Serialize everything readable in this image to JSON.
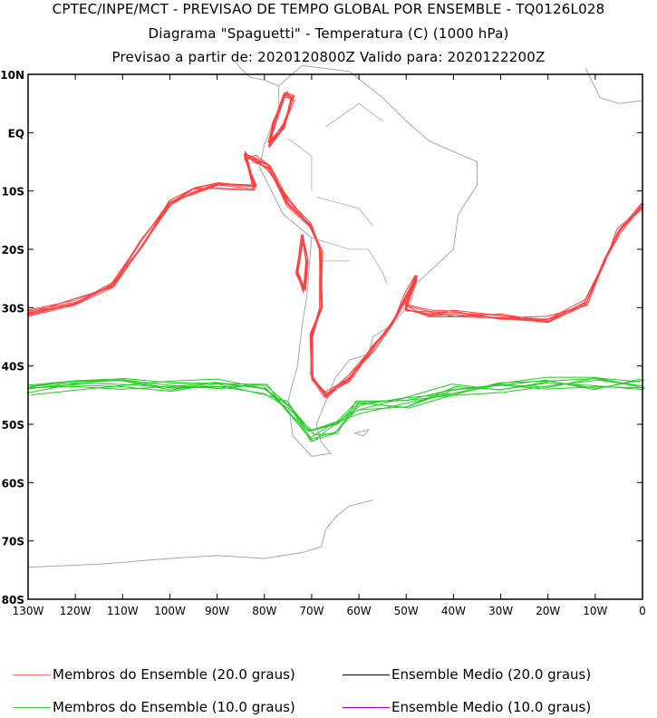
{
  "header": {
    "line1": "CPTEC/INPE/MCT - PREVISAO DE TEMPO GLOBAL POR ENSEMBLE - TQ0126L028",
    "line2": "Diagrama \"Spaguetti\" - Temperatura (C) (1000 hPa)",
    "line3": "Previsao a partir de: 2020120800Z  Valido para: 2020122200Z"
  },
  "chart_data": {
    "type": "map-contour",
    "lon_range": [
      -130,
      0
    ],
    "lat_range": [
      -80,
      10
    ],
    "lat_ticks": [
      {
        "v": 10,
        "label": "10N"
      },
      {
        "v": 0,
        "label": "EQ"
      },
      {
        "v": -10,
        "label": "10S"
      },
      {
        "v": -20,
        "label": "20S"
      },
      {
        "v": -30,
        "label": "30S"
      },
      {
        "v": -40,
        "label": "40S"
      },
      {
        "v": -50,
        "label": "50S"
      },
      {
        "v": -60,
        "label": "60S"
      },
      {
        "v": -70,
        "label": "70S"
      },
      {
        "v": -80,
        "label": "80S"
      }
    ],
    "lon_ticks": [
      {
        "v": -130,
        "label": "130W"
      },
      {
        "v": -120,
        "label": "120W"
      },
      {
        "v": -110,
        "label": "110W"
      },
      {
        "v": -100,
        "label": "100W"
      },
      {
        "v": -90,
        "label": "90W"
      },
      {
        "v": -80,
        "label": "80W"
      },
      {
        "v": -70,
        "label": "70W"
      },
      {
        "v": -60,
        "label": "60W"
      },
      {
        "v": -50,
        "label": "50W"
      },
      {
        "v": -40,
        "label": "40W"
      },
      {
        "v": -30,
        "label": "30W"
      },
      {
        "v": -20,
        "label": "20W"
      },
      {
        "v": -10,
        "label": "10W"
      },
      {
        "v": 0,
        "label": "0"
      }
    ],
    "members": 8,
    "contours": [
      {
        "level": 20.0,
        "color": "#ff4040",
        "path": [
          [
            -130,
            -31
          ],
          [
            -120,
            -29
          ],
          [
            -112,
            -26
          ],
          [
            -106,
            -19
          ],
          [
            -100,
            -12
          ],
          [
            -95,
            -10
          ],
          [
            -90,
            -9
          ],
          [
            -82,
            -9.5
          ],
          [
            -84,
            -3.8
          ],
          [
            -82,
            -4.5
          ],
          [
            -79,
            -6
          ],
          [
            -75,
            -12
          ],
          [
            -70,
            -16
          ],
          [
            -68,
            -20
          ],
          [
            -68,
            -30
          ],
          [
            -70,
            -35
          ],
          [
            -70,
            -42
          ],
          [
            -67,
            -45
          ],
          [
            -62,
            -42
          ],
          [
            -57,
            -37
          ],
          [
            -53,
            -33
          ],
          [
            -50,
            -28
          ],
          [
            -48,
            -25
          ],
          [
            -50,
            -30
          ],
          [
            -45,
            -31
          ],
          [
            -40,
            -31
          ],
          [
            -30,
            -31.5
          ],
          [
            -20,
            -32
          ],
          [
            -12,
            -29
          ],
          [
            -8,
            -22
          ],
          [
            -5,
            -17
          ],
          [
            0,
            -12.5
          ]
        ]
      },
      {
        "level": 20.0,
        "color": "#ff4040",
        "path": [
          [
            -75.5,
            6.5
          ],
          [
            -74,
            6
          ],
          [
            -76,
            1
          ],
          [
            -79,
            -2
          ],
          [
            -78,
            2
          ],
          [
            -75.5,
            6.5
          ]
        ]
      },
      {
        "level": 20.0,
        "color": "#ff4040",
        "path": [
          [
            -72,
            -18
          ],
          [
            -71,
            -22
          ],
          [
            -71.5,
            -27
          ],
          [
            -73,
            -24
          ],
          [
            -72,
            -18
          ]
        ]
      },
      {
        "level": 10.0,
        "color": "#22cc22",
        "path": [
          [
            -130,
            -44
          ],
          [
            -120,
            -43.5
          ],
          [
            -110,
            -43
          ],
          [
            -100,
            -43.5
          ],
          [
            -90,
            -43
          ],
          [
            -80,
            -44
          ],
          [
            -75,
            -47
          ],
          [
            -70,
            -52
          ],
          [
            -65,
            -50.5
          ],
          [
            -60,
            -47
          ],
          [
            -50,
            -46.5
          ],
          [
            -40,
            -44
          ],
          [
            -30,
            -43.5
          ],
          [
            -20,
            -43
          ],
          [
            -10,
            -43
          ],
          [
            0,
            -43
          ]
        ]
      }
    ],
    "coast_color": "#a8a8a8"
  },
  "legend": [
    {
      "label": "Membros do Ensemble (20.0 graus)",
      "color": "#ff7070"
    },
    {
      "label": "Ensemble Medio (20.0 graus)",
      "color": "#000000"
    },
    {
      "label": "Membros do Ensemble (10.0 graus)",
      "color": "#44cc44"
    },
    {
      "label": "Ensemble Medio (10.0 graus)",
      "color": "#9900cc"
    }
  ]
}
